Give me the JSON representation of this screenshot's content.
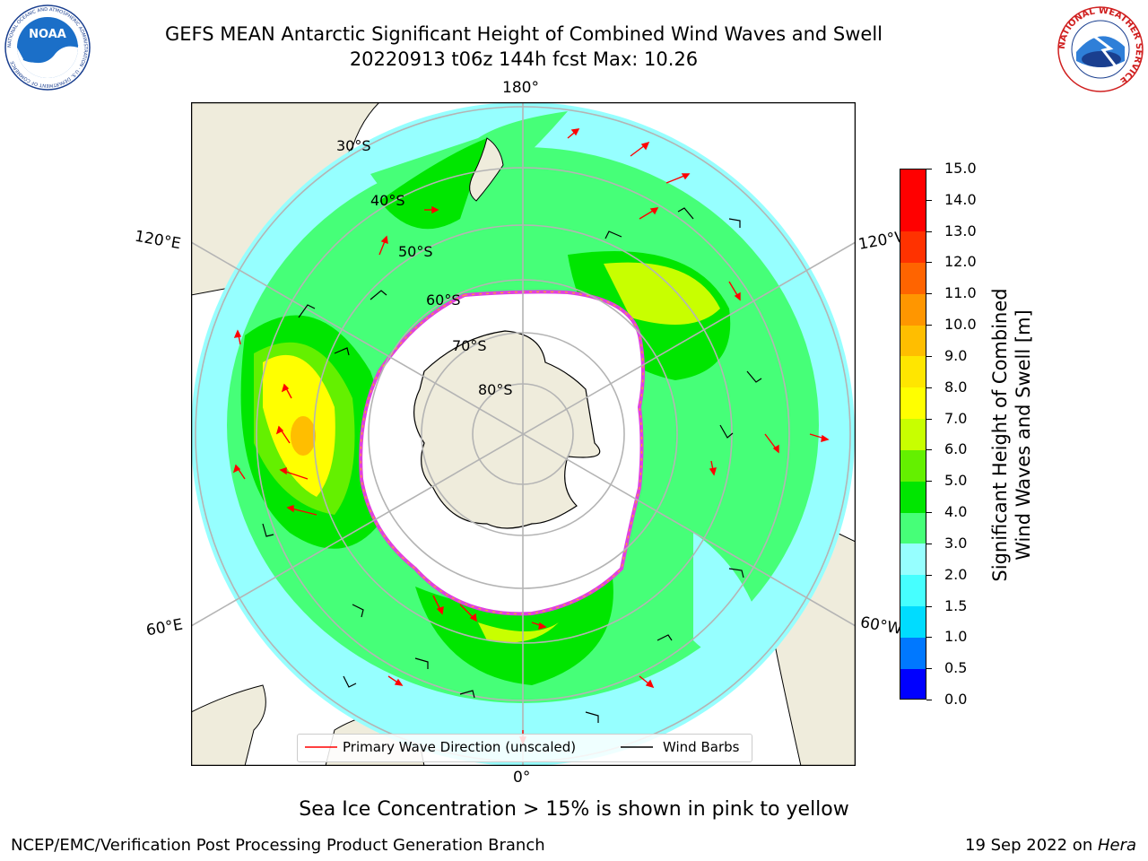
{
  "header": {
    "title_line1": "GEFS MEAN Antarctic Significant Height of Combined Wind Waves and Swell",
    "title_line2": "20220913 t06z 144h fcst   Max: 10.26"
  },
  "logos": {
    "noaa_text": "NOAA",
    "noaa_ring_text": "NATIONAL OCEANIC AND ATMOSPHERIC ADMINISTRATION · U.S. DEPARTMENT OF COMMERCE",
    "nws_ring_text": "NATIONAL WEATHER SERVICE"
  },
  "map": {
    "projection": "south polar stereographic",
    "longitude_labels": {
      "top": "180°",
      "bottom": "0°",
      "upper_left": "120°E",
      "upper_right": "120°W",
      "lower_left": "60°E",
      "lower_right": "60°W"
    },
    "latitude_labels": [
      "30°S",
      "40°S",
      "50°S",
      "60°S",
      "70°S",
      "80°S"
    ],
    "colors": {
      "land": "#efecdc",
      "ocean_open": "#ffffff",
      "coast": "#000000",
      "grid": "#b4b4b4",
      "sea_ice_edge": "#e040e0",
      "wave_arrow": "#ff0000",
      "wind_barb": "#000000"
    }
  },
  "colorbar": {
    "label_line1": "Significant Height of Combined",
    "label_line2": "Wind Waves and Swell [m]",
    "ticks": [
      "0.0",
      "0.5",
      "1.0",
      "1.5",
      "2.0",
      "3.0",
      "4.0",
      "5.0",
      "6.0",
      "7.0",
      "8.0",
      "9.0",
      "10.0",
      "11.0",
      "12.0",
      "13.0",
      "14.0",
      "15.0"
    ],
    "colors": [
      "#0000ff",
      "#0078ff",
      "#00dcff",
      "#46ffff",
      "#96ffff",
      "#46ff78",
      "#00e600",
      "#64f000",
      "#c8ff00",
      "#ffff00",
      "#ffe600",
      "#ffbe00",
      "#ff9600",
      "#ff6400",
      "#ff3200",
      "#ff0000",
      "#ff0000"
    ]
  },
  "chart_data": {
    "type": "heatmap",
    "field": "Significant height of combined wind waves and swell",
    "units": "m",
    "max": 10.26,
    "range": [
      0,
      15
    ]
  },
  "legend": {
    "wave_label": "Primary Wave Direction (unscaled)",
    "wind_label": "Wind Barbs"
  },
  "notes": {
    "sea_ice": "Sea Ice Concentration > 15% is shown in pink to yellow"
  },
  "footer": {
    "left": "NCEP/EMC/Verification Post Processing Product Generation Branch",
    "right_date": "19 Sep 2022 on ",
    "right_host": "Hera"
  }
}
